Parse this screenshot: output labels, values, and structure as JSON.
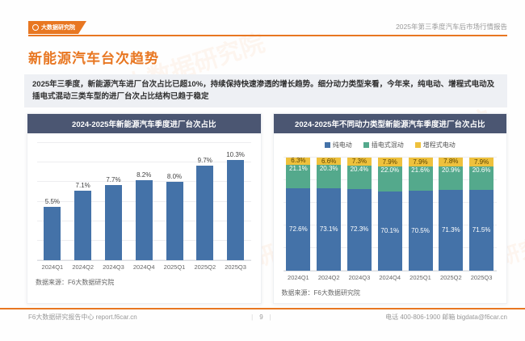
{
  "colors": {
    "accent_orange": "#e87722",
    "header_navy": "#4b5672",
    "bar_blue": "#4472a8",
    "bar_green": "#54a98c",
    "bar_yellow": "#eec13d",
    "summary_bg": "#eef0f4"
  },
  "header": {
    "logo_text": "大数据研究院",
    "report_title": "2025年第三季度汽车后市场行情报告"
  },
  "page": {
    "title": "新能源汽车台次趋势",
    "summary": "2025年三季度，新能源汽车进厂台次占比已超10%，持续保持快速渗透的增长趋势。细分动力类型来看，今年来，纯电动、增程式电动及插电式混动三类车型的进厂台次占比结构已趋于稳定"
  },
  "decor": {
    "watermark_text": "大数据研究院"
  },
  "chart_data": [
    {
      "type": "bar",
      "title": "2024-2025年新能源汽车季度进厂台次占比",
      "categories": [
        "2024Q1",
        "2024Q2",
        "2024Q3",
        "2024Q4",
        "2025Q1",
        "2025Q2",
        "2025Q3"
      ],
      "values": [
        5.5,
        7.1,
        7.7,
        8.2,
        8.0,
        9.7,
        10.3
      ],
      "labels": [
        "5.5%",
        "7.1%",
        "7.7%",
        "8.2%",
        "8.0%",
        "9.7%",
        "10.3%"
      ],
      "ylim": [
        0,
        12
      ],
      "grid_step": 2,
      "grid": true,
      "bar_color": "#4472a8",
      "legend_position": "none",
      "xlabel": "",
      "ylabel": "",
      "source": "数据来源：F6大数据研究院"
    },
    {
      "type": "bar",
      "stacked": true,
      "percent": true,
      "title": "2024-2025年不同动力类型新能源汽车季度进厂台次占比",
      "categories": [
        "2024Q1",
        "2024Q2",
        "2024Q3",
        "2024Q4",
        "2025Q1",
        "2025Q2",
        "2025Q3"
      ],
      "series": [
        {
          "name": "纯电动",
          "color": "#4472a8",
          "label_color": "#ffffff",
          "values": [
            72.6,
            73.1,
            72.3,
            70.1,
            70.5,
            71.3,
            71.5
          ]
        },
        {
          "name": "插电式混动",
          "color": "#54a98c",
          "label_color": "#ffffff",
          "label_pos": "top",
          "values": [
            21.1,
            20.3,
            20.4,
            22.0,
            21.6,
            20.9,
            20.6
          ]
        },
        {
          "name": "增程式电动",
          "color": "#eec13d",
          "label_color": "#5b4300",
          "values": [
            6.3,
            6.6,
            7.3,
            7.9,
            7.9,
            7.8,
            7.9
          ]
        }
      ],
      "ylim": [
        0,
        100
      ],
      "grid_step": 20,
      "grid": true,
      "legend_position": "top",
      "xlabel": "",
      "ylabel": "",
      "source": "数据来源：F6大数据研究院"
    }
  ],
  "footer": {
    "left": "F6大数据研究报告中心 report.f6car.cn",
    "page": "9",
    "separator": "|",
    "right": "电话 400-806-1900 邮箱 bigdata@f6car.cn"
  }
}
